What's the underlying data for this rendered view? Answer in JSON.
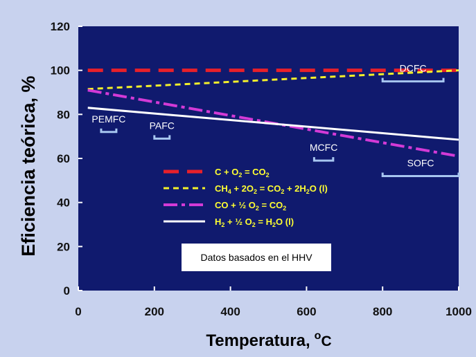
{
  "chart_data": {
    "type": "line",
    "xlabel": "Temperatura,",
    "xlabel_unit": "o",
    "xlabel_unit_sub": "C",
    "ylabel": "Eficiencia teórica, %",
    "xlim": [
      0,
      1000
    ],
    "ylim": [
      0,
      120
    ],
    "xticks": [
      "0",
      "200",
      "400",
      "600",
      "800",
      "1000"
    ],
    "yticks": [
      "0",
      "20",
      "40",
      "60",
      "80",
      "100",
      "120"
    ],
    "grid": false,
    "background": "#101a6e",
    "series": [
      {
        "name": "C + O2 = CO2",
        "color": "#e8202a",
        "dash": "22,12",
        "width": 5,
        "x": [
          25,
          1000
        ],
        "y": [
          100,
          100
        ]
      },
      {
        "name": "CH4 + 2O2 = CO2 + 2H2O (l)",
        "color": "#f4f12a",
        "dash": "8,6",
        "width": 3,
        "x": [
          25,
          1000
        ],
        "y": [
          91.5,
          100
        ]
      },
      {
        "name": "CO + ½ O2 = CO2",
        "color": "#d33ad6",
        "dash": "20,6,5,6",
        "width": 4,
        "x": [
          25,
          1000
        ],
        "y": [
          91,
          61
        ]
      },
      {
        "name": "H2 + ½ O2 = H2O (l)",
        "color": "#ffffff",
        "dash": "",
        "width": 3,
        "x": [
          25,
          1000
        ],
        "y": [
          83,
          68.5
        ]
      }
    ],
    "legend_placement": "center-left",
    "legend": [
      {
        "parts": [
          [
            "C + O",
            ""
          ],
          [
            "2",
            "sub"
          ],
          [
            " = CO",
            ""
          ],
          [
            "2",
            "sub"
          ]
        ]
      },
      {
        "parts": [
          [
            "CH",
            ""
          ],
          [
            "4",
            "sub"
          ],
          [
            " + 2O",
            ""
          ],
          [
            "2",
            "sub"
          ],
          [
            " = CO",
            ""
          ],
          [
            "2",
            "sub"
          ],
          [
            " + 2H",
            ""
          ],
          [
            "2",
            "sub"
          ],
          [
            "O (l)",
            ""
          ]
        ]
      },
      {
        "parts": [
          [
            "CO + ½ O",
            ""
          ],
          [
            "2",
            "sub"
          ],
          [
            " = CO",
            ""
          ],
          [
            "2",
            "sub"
          ]
        ]
      },
      {
        "parts": [
          [
            "H",
            ""
          ],
          [
            "2",
            "sub"
          ],
          [
            " + ½ O",
            ""
          ],
          [
            "2",
            "sub"
          ],
          [
            " = H",
            ""
          ],
          [
            "2",
            "sub"
          ],
          [
            "O (l)",
            ""
          ]
        ]
      }
    ],
    "fuel_cells": [
      {
        "label": "PEMFC",
        "range": [
          60,
          100
        ],
        "y": 72
      },
      {
        "label": "PAFC",
        "range": [
          200,
          240
        ],
        "y": 69
      },
      {
        "label": "MCFC",
        "range": [
          620,
          670
        ],
        "y": 59
      },
      {
        "label": "SOFC",
        "range": [
          800,
          1000
        ],
        "y": 52
      },
      {
        "label": "DCFC",
        "range": [
          800,
          960
        ],
        "y": 95
      }
    ],
    "annotation": "Datos basados en el HHV"
  }
}
